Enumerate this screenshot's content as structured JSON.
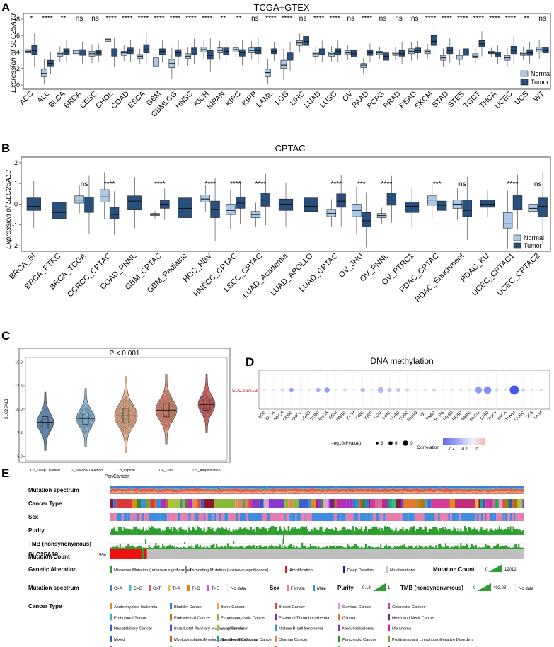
{
  "figure": {
    "panels": [
      "A",
      "B",
      "C",
      "D",
      "E"
    ]
  },
  "colors": {
    "normal": "#a9c9e6",
    "tumor": "#29507d",
    "deep": "#4a6f9b",
    "shallow": "#7fb0cf",
    "diploid": "#f2b38d",
    "gain": "#e8876f",
    "amp": "#c24e4e",
    "amp_bar": "#ee1111",
    "no_alt": "#bfbfbf",
    "green": "#2e9e2e",
    "red_title": "#cc2222"
  },
  "chart_data": [
    {
      "id": "A",
      "type": "box",
      "title": "TCGA+GTEX",
      "ylabel": "Expression of SLC25A13",
      "ylim": [
        0,
        8
      ],
      "yticks": [
        "0",
        "2",
        "4",
        "6",
        "8"
      ],
      "legend": {
        "normal": "Normal",
        "tumor": "Tumor"
      },
      "categories": [
        "ACC",
        "ALL",
        "BLCA",
        "BRCA",
        "CESC",
        "CHOL",
        "COAD",
        "ESCA",
        "GBM",
        "GBMLGG",
        "HNSC",
        "KICH",
        "KIPAN",
        "KIRC",
        "KIRP",
        "LAML",
        "LGG",
        "LIHC",
        "LUAD",
        "LUSC",
        "OV",
        "PAAD",
        "PCPG",
        "PRAD",
        "READ",
        "SKCM",
        "STAD",
        "STES",
        "TGCT",
        "THCA",
        "UCEC",
        "UCS",
        "WT"
      ],
      "signif": [
        "*",
        "****",
        "**",
        "ns",
        "ns",
        "****",
        "****",
        "****",
        "****",
        "****",
        "****",
        "****",
        "**",
        "**",
        "ns",
        "****",
        "****",
        "ns",
        "****",
        "****",
        "ns",
        "****",
        "ns",
        "ns",
        "ns",
        "****",
        "****",
        "****",
        "****",
        "****",
        "****",
        "**",
        "ns"
      ],
      "normal": [
        [
          3.9,
          4.1,
          4.3
        ],
        [
          1.0,
          1.4,
          1.9
        ],
        [
          3.5,
          3.8,
          4.0
        ],
        [
          3.8,
          4.0,
          4.2
        ],
        [
          3.5,
          3.8,
          4.1
        ],
        [
          5.3,
          5.5,
          5.6
        ],
        [
          3.6,
          3.9,
          4.1
        ],
        [
          3.2,
          3.5,
          3.7
        ],
        [
          2.3,
          2.8,
          3.3
        ],
        [
          2.1,
          2.6,
          3.1
        ],
        [
          3.2,
          3.5,
          3.8
        ],
        [
          4.0,
          4.3,
          4.6
        ],
        [
          3.9,
          4.2,
          4.5
        ],
        [
          4.0,
          4.3,
          4.5
        ],
        [
          3.9,
          4.2,
          4.5
        ],
        [
          1.0,
          1.5,
          1.9
        ],
        [
          2.0,
          2.4,
          3.0
        ],
        [
          4.8,
          5.1,
          5.4
        ],
        [
          3.5,
          3.8,
          4.0
        ],
        [
          3.5,
          3.8,
          4.0
        ],
        [
          3.7,
          3.9,
          4.2
        ],
        [
          2.1,
          2.4,
          2.6
        ],
        [
          3.7,
          3.9,
          4.1
        ],
        [
          3.6,
          3.8,
          4.0
        ],
        [
          3.8,
          4.1,
          4.4
        ],
        [
          3.8,
          4.1,
          4.3
        ],
        [
          3.0,
          3.3,
          3.6
        ],
        [
          3.1,
          3.4,
          3.6
        ],
        [
          3.3,
          3.5,
          3.8
        ],
        [
          3.8,
          3.9,
          4.1
        ],
        [
          3.0,
          3.3,
          3.6
        ],
        [
          3.6,
          3.8,
          4.0
        ],
        [
          4.0,
          4.3,
          4.6
        ]
      ],
      "tumor": [
        [
          3.7,
          4.2,
          4.8
        ],
        [
          2.3,
          2.6,
          3.0
        ],
        [
          3.7,
          4.1,
          4.4
        ],
        [
          3.6,
          4.0,
          4.3
        ],
        [
          3.6,
          3.9,
          4.2
        ],
        [
          3.5,
          4.0,
          4.4
        ],
        [
          3.8,
          4.2,
          4.5
        ],
        [
          3.9,
          4.3,
          4.9
        ],
        [
          3.7,
          4.1,
          4.4
        ],
        [
          3.5,
          3.9,
          4.3
        ],
        [
          3.7,
          4.0,
          4.5
        ],
        [
          3.1,
          3.6,
          4.2
        ],
        [
          3.7,
          4.1,
          4.5
        ],
        [
          3.5,
          3.9,
          4.3
        ],
        [
          3.8,
          4.2,
          4.6
        ],
        [
          3.8,
          4.1,
          4.4
        ],
        [
          3.0,
          3.4,
          3.9
        ],
        [
          4.8,
          5.3,
          5.9
        ],
        [
          3.7,
          4.0,
          4.4
        ],
        [
          3.7,
          4.1,
          4.4
        ],
        [
          3.4,
          3.8,
          4.2
        ],
        [
          3.6,
          3.9,
          4.2
        ],
        [
          3.0,
          3.5,
          3.9
        ],
        [
          3.5,
          3.8,
          4.2
        ],
        [
          3.9,
          4.2,
          4.5
        ],
        [
          4.8,
          5.3,
          6.0
        ],
        [
          3.8,
          4.2,
          4.6
        ],
        [
          3.6,
          4.0,
          4.4
        ],
        [
          4.6,
          5.0,
          5.4
        ],
        [
          3.4,
          3.7,
          4.0
        ],
        [
          3.8,
          4.2,
          4.7
        ],
        [
          3.6,
          3.9,
          4.3
        ],
        [
          3.9,
          4.2,
          4.6
        ]
      ]
    },
    {
      "id": "B",
      "type": "box",
      "title": "CPTAC",
      "ylabel": "Expression of SLC25A13",
      "ylim": [
        -2.2,
        2.2
      ],
      "yticks": [
        "-2",
        "-1",
        "0",
        "1",
        "2"
      ],
      "legend": {
        "normal": "Normal",
        "tumor": "Tumor"
      },
      "categories": [
        "BRCA_BI",
        "BRCA_PTRC",
        "BRCA_TCGA",
        "CCRCC_CPTAC",
        "COAD_PNNL",
        "GBM_CPTAC",
        "GBM_Pediatric",
        "HCC_HBV",
        "HNSCC_CPTAC",
        "LSCC_CPTAC",
        "LUAD_Academia",
        "LUAD_APOLLO",
        "LUAD_CPTAC",
        "OV_JHU",
        "OV_PNNL",
        "OV_PTRC1",
        "PDAC_CPTAC",
        "PDAC_Enrichment",
        "PDAC_KU",
        "UCEC_CPTAC1",
        "UCEC_CPTAC2"
      ],
      "signif": [
        "",
        "",
        "ns",
        "****",
        "",
        "****",
        "",
        "****",
        "****",
        "****",
        "",
        "",
        "****",
        "***",
        "****",
        "",
        "***",
        "ns",
        "",
        "****",
        "ns"
      ],
      "normal": [
        null,
        null,
        [
          0.05,
          0.2,
          0.4
        ],
        [
          0.1,
          0.35,
          0.7
        ],
        null,
        [
          -0.55,
          -0.5,
          -0.45
        ],
        null,
        [
          0.1,
          0.25,
          0.45
        ],
        [
          -0.5,
          -0.3,
          0.0
        ],
        [
          -0.65,
          -0.5,
          -0.35
        ],
        null,
        null,
        [
          -0.6,
          -0.45,
          -0.25
        ],
        [
          -0.6,
          -0.3,
          0.0
        ],
        [
          -0.65,
          -0.55,
          -0.45
        ],
        null,
        [
          -0.05,
          0.2,
          0.4
        ],
        [
          -0.2,
          0.0,
          0.2
        ],
        null,
        [
          -1.15,
          -0.95,
          -0.4
        ],
        [
          -0.35,
          -0.2,
          0.0
        ]
      ],
      "tumor": [
        [
          -0.3,
          -0.1,
          0.3
        ],
        [
          -0.7,
          -0.4,
          0.1
        ],
        [
          -0.4,
          0.1,
          0.35
        ],
        [
          -0.7,
          -0.5,
          -0.15
        ],
        [
          -0.25,
          0.15,
          0.4
        ],
        [
          -0.2,
          0.0,
          0.2
        ],
        [
          -0.65,
          -0.2,
          0.3
        ],
        [
          -0.65,
          -0.25,
          0.15
        ],
        [
          -0.2,
          0.05,
          0.35
        ],
        [
          -0.1,
          0.2,
          0.55
        ],
        [
          -0.3,
          0.0,
          0.25
        ],
        [
          -0.35,
          -0.1,
          0.3
        ],
        [
          -0.15,
          0.15,
          0.5
        ],
        [
          -1.1,
          -0.8,
          -0.4
        ],
        [
          -0.05,
          0.2,
          0.55
        ],
        [
          -0.4,
          -0.1,
          0.1
        ],
        [
          -0.3,
          -0.05,
          0.15
        ],
        [
          -0.6,
          -0.3,
          0.2
        ],
        [
          -0.15,
          0.0,
          0.2
        ],
        [
          -0.25,
          0.1,
          0.45
        ],
        [
          -0.6,
          -0.1,
          0.3
        ]
      ]
    },
    {
      "id": "C",
      "type": "violin",
      "title": "P < 0.001",
      "ylabel": "SLC25A13",
      "xlabel": "PanCancer",
      "ylim": [
        4.5,
        15.5
      ],
      "yticks": [
        "5.0",
        "7.5",
        "10.0",
        "12.5",
        "15.0"
      ],
      "categories": [
        "C1_Deep Deletion",
        "C2_Shallow Deletion",
        "C3_Diploid",
        "C4_Gain",
        "C5_Amplification"
      ],
      "medians": [
        8.6,
        9.0,
        9.3,
        9.9,
        10.5
      ]
    },
    {
      "id": "D",
      "type": "dotplot",
      "title": "DNA methylation",
      "row_label": "SLC25A13",
      "categories": [
        "ACC",
        "BLCA",
        "BRCA",
        "CESC",
        "CHOL",
        "COAD",
        "DLBC",
        "ESCA",
        "GBM",
        "HNSC",
        "KICH",
        "KIRC",
        "KIRP",
        "LGG",
        "LIHC",
        "LUAD",
        "LUSC",
        "MESO",
        "OV",
        "PAAD",
        "PCPG",
        "PRAD",
        "READ",
        "SARC",
        "SKCM",
        "STAD",
        "TGCT",
        "THCA",
        "THYM",
        "UCEC",
        "UCS",
        "UVM"
      ],
      "correlation": [
        -0.05,
        -0.05,
        -0.1,
        -0.3,
        -0.02,
        -0.05,
        -0.25,
        -0.3,
        -0.05,
        -0.1,
        -0.02,
        -0.2,
        -0.05,
        -0.2,
        -0.15,
        -0.15,
        -0.1,
        -0.02,
        -0.05,
        -0.1,
        -0.02,
        -0.05,
        0.05,
        -0.05,
        -0.3,
        -0.35,
        -0.1,
        -0.05,
        -0.55,
        -0.1,
        0.05,
        0.08
      ],
      "log10p": [
        1,
        1,
        2,
        3,
        1,
        1,
        3,
        4,
        1,
        2,
        1,
        3,
        1,
        5,
        3,
        3,
        2,
        1,
        1,
        2,
        1,
        1,
        1,
        1,
        6,
        7,
        2,
        1,
        9,
        2,
        1,
        1
      ],
      "size_legend_title": "-log10(Pvalue)",
      "size_legend": [
        "3",
        "6",
        "9"
      ],
      "color_legend_title": "Correlation",
      "color_legend": [
        "-0.4",
        "-0.2",
        "0"
      ]
    }
  ],
  "panel_e": {
    "rows": [
      "Mutation spectrum",
      "Cancer Type",
      "Sex",
      "Purity",
      "TMB (nonsynonymous)",
      "Mutation Count"
    ],
    "gene": "SLC25A13",
    "gene_pct": "9%",
    "gene_altered_fraction": 0.09,
    "genetic_alteration": {
      "title": "Genetic Alteration",
      "items": [
        {
          "label": "Missense Mutation (unknown significance)",
          "color": "#2e9e2e"
        },
        {
          "label": "Truncating Mutation (unknown significance)",
          "color": "#888888"
        },
        {
          "label": "Amplification",
          "color": "#ee1111"
        },
        {
          "label": "Deep Deletion",
          "color": "#1a1aa8"
        },
        {
          "label": "No alterations",
          "color": "#bfbfbf"
        }
      ]
    },
    "mutation_count_legend": {
      "title": "Mutation Count",
      "min": "0",
      "max": "12012"
    },
    "mutation_spectrum": {
      "title": "Mutation spectrum",
      "items": [
        {
          "label": "C>A",
          "color": "#3d7fd6"
        },
        {
          "label": "C>G",
          "color": "#46c1c9"
        },
        {
          "label": "C>T",
          "color": "#e25c4b"
        },
        {
          "label": "T>A",
          "color": "#f2b84b"
        },
        {
          "label": "T>C",
          "color": "#e07b2a"
        },
        {
          "label": "T>G",
          "color": "#b76bc2"
        },
        {
          "label": "No data",
          "color": "#ffffff"
        }
      ]
    },
    "sex_legend": {
      "title": "Sex",
      "items": [
        {
          "label": "Female",
          "color": "#e67cad"
        },
        {
          "label": "Male",
          "color": "#3f8de0"
        }
      ]
    },
    "purity_legend": {
      "title": "Purity",
      "min": "0.13",
      "max": "1"
    },
    "tmb_legend": {
      "title": "TMB (nonsynonymous)",
      "min": "0",
      "max": "402.03",
      "nodata": "No data"
    },
    "cancer_type": {
      "title": "Cancer Type",
      "items": [
        {
          "label": "Acute myeloid leukemia",
          "color": "#e08a1a"
        },
        {
          "label": "Bladder Cancer",
          "color": "#3a74d6"
        },
        {
          "label": "Bone Cancer",
          "color": "#f0a83a"
        },
        {
          "label": "Breast Cancer",
          "color": "#e5483b"
        },
        {
          "label": "Cervical Cancer",
          "color": "#d6a0d9"
        },
        {
          "label": "Colorectal Cancer",
          "color": "#d43a96"
        },
        {
          "label": "Embryonal Tumor",
          "color": "#2dbba8"
        },
        {
          "label": "Endometrial Cancer",
          "color": "#c96a1a"
        },
        {
          "label": "Esophagogastric Cancer",
          "color": "#8ab83a"
        },
        {
          "label": "Essential Thrombocythemia",
          "color": "#7a2fa6"
        },
        {
          "label": "Glioma",
          "color": "#e0792a"
        },
        {
          "label": "Head and Neck Cancer",
          "color": "#6a2a8a"
        },
        {
          "label": "Hepatobiliary Cancer",
          "color": "#3a62c8"
        },
        {
          "label": "Intraductal Papillary Mucinous Neoplasm",
          "color": "#6a46c9"
        },
        {
          "label": "Lung Cancer",
          "color": "#a8c43a"
        },
        {
          "label": "Mature B-cell lymphoma",
          "color": "#3a8fd6"
        },
        {
          "label": "Medulloblastoma",
          "color": "#8a3ac8"
        },
        {
          "label": "Melanoma",
          "color": "#c22a7a"
        },
        {
          "label": "Mixed",
          "color": "#3a54b8"
        },
        {
          "label": "Myelodysplastic/Myeloproliferative Neoplasms",
          "color": "#b86a1a"
        },
        {
          "label": "Non-Small Cell Lung Cancer",
          "color": "#2a9a9a"
        },
        {
          "label": "Ovarian Cancer",
          "color": "#e08a5a"
        },
        {
          "label": "Pancreatic Cancer",
          "color": "#2a8a3a"
        },
        {
          "label": "Posttransplant Lymphoproliferative Disorders",
          "color": "#8a9a2a"
        },
        {
          "label": "Prostate Cancer",
          "color": "#b82ab8"
        },
        {
          "label": "Renal Cell Carcinoma",
          "color": "#2aa84a"
        },
        {
          "label": "Soft Tissue Sarcoma",
          "color": "#d66a9a"
        },
        {
          "label": "Thyroid Cancer",
          "color": "#d63a3a"
        },
        {
          "label": "Uterine Endometrioid Carcinoma",
          "color": "#2a9a2a"
        },
        {
          "label": "Mature B-Cell Neoplasms",
          "color": "#8a1a2a"
        }
      ]
    }
  }
}
